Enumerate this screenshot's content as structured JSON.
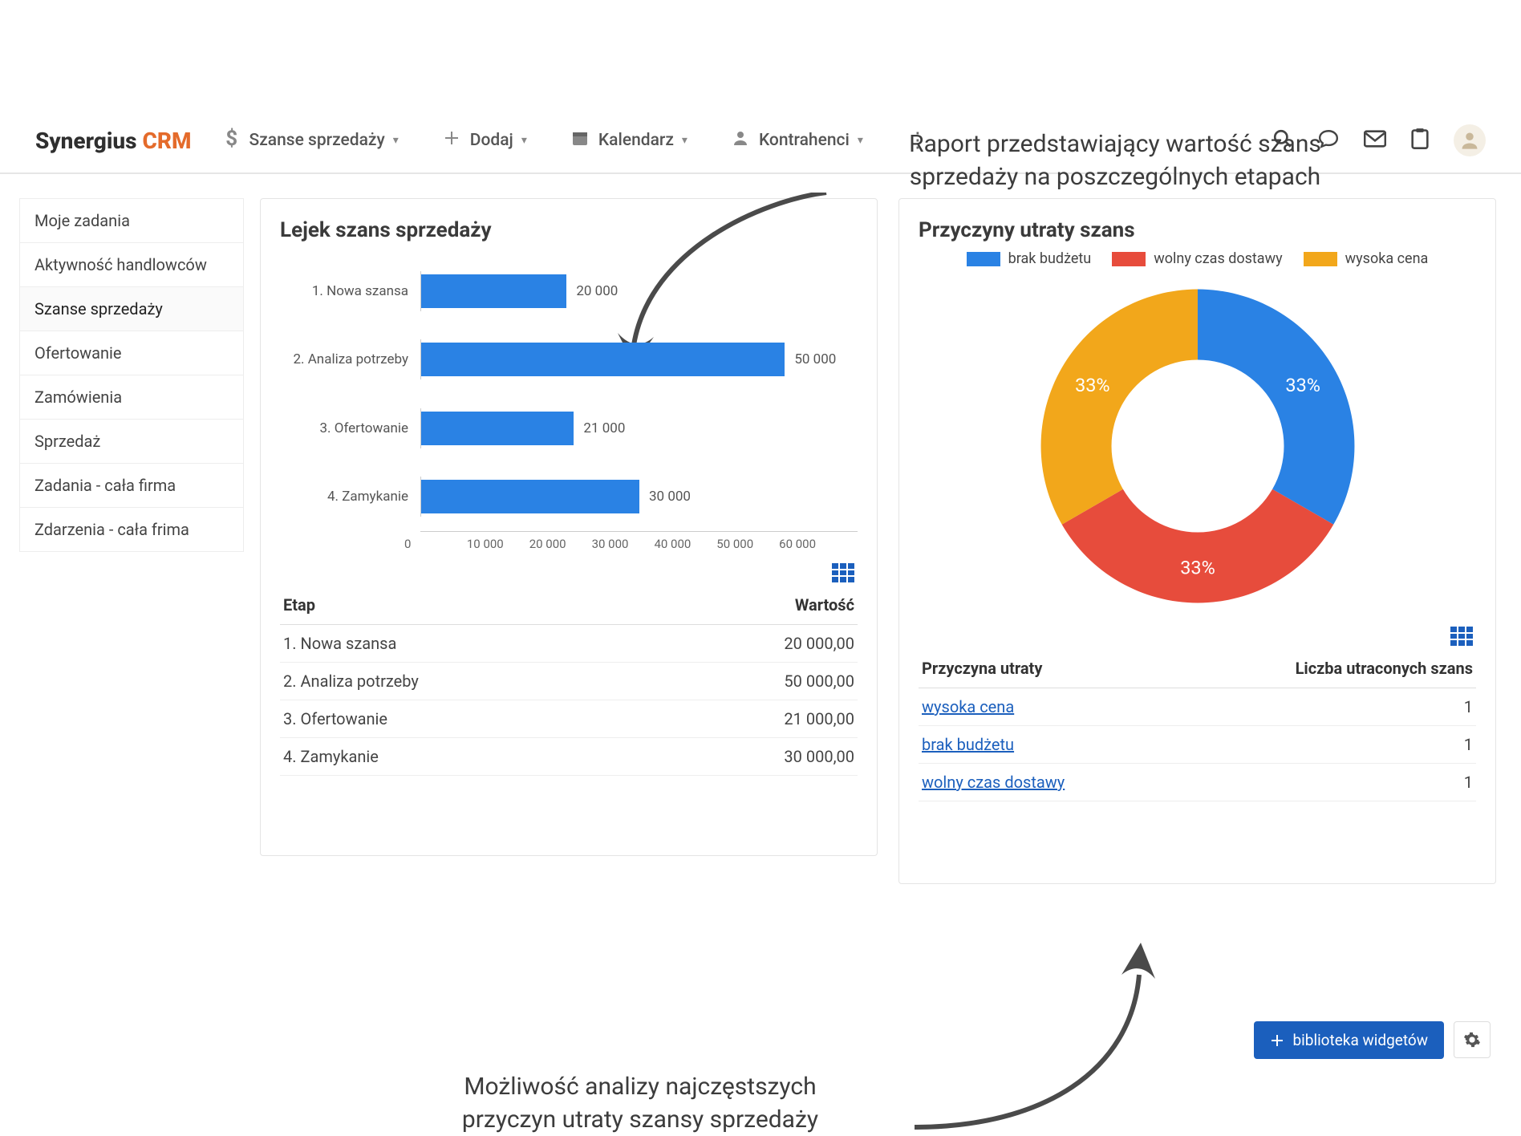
{
  "annotations": {
    "top_line1": "Raport przedstawiający wartość szans",
    "top_line2": "sprzedaży na poszczególnych etapach",
    "bottom_line1": "Możliwość analizy najczęstszych",
    "bottom_line2": "przyczyn utraty szansy sprzedaży"
  },
  "brand": {
    "name": "Synergius",
    "suffix": "CRM",
    "accent_color": "#e46b2b"
  },
  "nav": {
    "opportunities": "Szanse sprzedaży",
    "add": "Dodaj",
    "calendar": "Kalendarz",
    "contractors": "Kontrahenci"
  },
  "sidebar": {
    "items": [
      "Moje zadania",
      "Aktywność handlowców",
      "Szanse sprzedaży",
      "Ofertowanie",
      "Zamówienia",
      "Sprzedaż",
      "Zadania - cała firma",
      "Zdarzenia - cała frima"
    ],
    "active_index": 2
  },
  "funnel": {
    "title": "Lejek szans sprzedaży",
    "type": "bar",
    "bar_color": "#2a82e4",
    "value_text_color": "#555555",
    "grid_color": "#cccccc",
    "x_max": 60000,
    "x_ticks": [
      "0",
      "10 000",
      "20 000",
      "30 000",
      "40 000",
      "50 000",
      "60 000"
    ],
    "rows": [
      {
        "label": "1. Nowa szansa",
        "value": 20000,
        "display": "20 000"
      },
      {
        "label": "2. Analiza potrzeby",
        "value": 50000,
        "display": "50 000"
      },
      {
        "label": "3. Ofertowanie",
        "value": 21000,
        "display": "21 000"
      },
      {
        "label": "4. Zamykanie",
        "value": 30000,
        "display": "30 000"
      }
    ],
    "table": {
      "col_stage": "Etap",
      "col_value": "Wartość",
      "rows": [
        {
          "stage": "1. Nowa szansa",
          "value": "20 000,00"
        },
        {
          "stage": "2. Analiza potrzeby",
          "value": "50 000,00"
        },
        {
          "stage": "3. Ofertowanie",
          "value": "21 000,00"
        },
        {
          "stage": "4. Zamykanie",
          "value": "30 000,00"
        }
      ]
    }
  },
  "loss": {
    "title": "Przyczyny utraty szans",
    "type": "donut",
    "inner_radius_ratio": 0.55,
    "series": [
      {
        "label": "brak budżetu",
        "value": 1,
        "pct": "33%",
        "color": "#2a82e4"
      },
      {
        "label": "wolny czas dostawy",
        "value": 1,
        "pct": "33%",
        "color": "#e74c3c"
      },
      {
        "label": "wysoka cena",
        "value": 1,
        "pct": "33%",
        "color": "#f2a71b"
      }
    ],
    "table": {
      "col_reason": "Przyczyna utraty",
      "col_count": "Liczba utraconych szans",
      "rows": [
        {
          "reason": "wysoka cena",
          "count": "1"
        },
        {
          "reason": "brak budżetu",
          "count": "1"
        },
        {
          "reason": "wolny czas dostawy",
          "count": "1"
        }
      ]
    }
  },
  "footer": {
    "widget_library": "biblioteka widgetów"
  }
}
